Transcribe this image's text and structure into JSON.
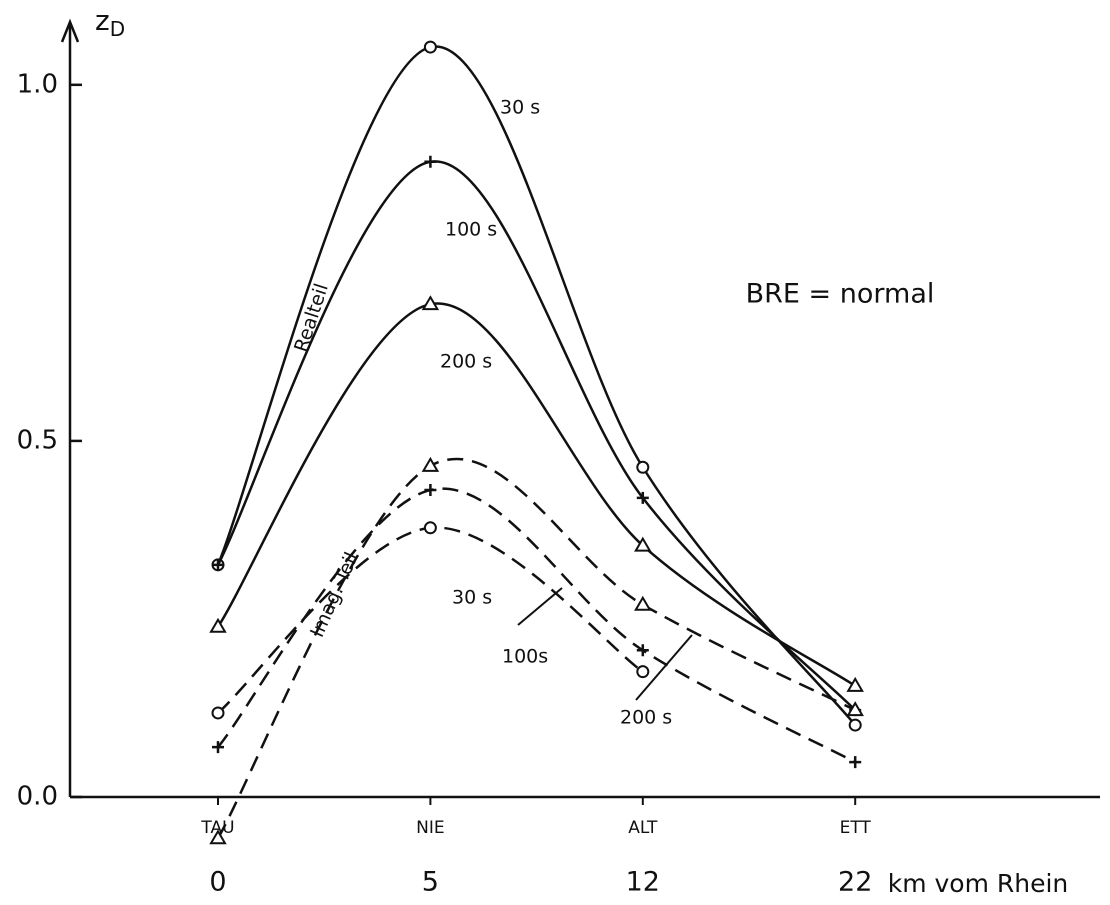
{
  "chart_data": {
    "type": "line",
    "y_label_main": "z",
    "y_label_sub": "D",
    "x_label": "km vom Rhein",
    "categories": [
      "TAU",
      "NIE",
      "ALT",
      "ETT"
    ],
    "km": [
      "0",
      "5",
      "12",
      "22"
    ],
    "annotations": [
      "BRE = normal",
      "Realteil",
      "Imag. Teil"
    ],
    "ylim": [
      0,
      1.084
    ],
    "yticks": [
      {
        "value": 0,
        "label": "0.0"
      },
      {
        "value": 0.5,
        "label": "0.5"
      },
      {
        "value": 1,
        "label": "1.0"
      }
    ],
    "series": [
      {
        "name": "30 s",
        "color": "#111111",
        "dash": false,
        "marker": "circle",
        "values": [
          0.326,
          1.053,
          0.463,
          0.101
        ]
      },
      {
        "name": "100 s",
        "color": "#111111",
        "dash": false,
        "marker": "plus",
        "values": [
          0.326,
          0.892,
          0.42,
          0.122
        ]
      },
      {
        "name": "200 s",
        "color": "#111111",
        "dash": false,
        "marker": "triangle",
        "values": [
          0.239,
          0.692,
          0.353,
          0.156
        ]
      },
      {
        "name": "30 s",
        "color": "#111111",
        "dash": true,
        "marker": "circle",
        "values": [
          0.118,
          0.378,
          0.176,
          null
        ]
      },
      {
        "name": "100s",
        "color": "#111111",
        "dash": true,
        "marker": "plus",
        "values": [
          0.07,
          0.431,
          0.206,
          0.049
        ]
      },
      {
        "name": "200 s",
        "color": "#111111",
        "dash": true,
        "marker": "triangle",
        "values": [
          -0.058,
          0.465,
          0.27,
          0.122
        ]
      }
    ]
  }
}
